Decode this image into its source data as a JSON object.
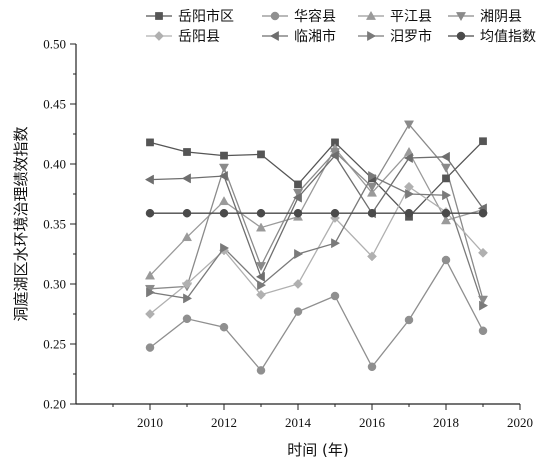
{
  "chart_data": {
    "type": "line",
    "title": "",
    "xlabel": "时间 (年)",
    "ylabel": "洞庭湖区水环境治理绩效指数",
    "xlim": [
      2008,
      2020
    ],
    "ylim": [
      0.2,
      0.5
    ],
    "x_ticks": [
      "2010",
      "2012",
      "2014",
      "2016",
      "2018",
      "2020"
    ],
    "y_ticks": [
      "0.20",
      "0.25",
      "0.30",
      "0.35",
      "0.40",
      "0.45",
      "0.50"
    ],
    "x": [
      2010,
      2011,
      2012,
      2013,
      2014,
      2015,
      2016,
      2017,
      2018,
      2019
    ],
    "grid": false,
    "legend_position": "top",
    "series": [
      {
        "name": "岳阳市区",
        "marker": "square",
        "color": "#555555",
        "values": [
          0.418,
          0.41,
          0.407,
          0.408,
          0.383,
          0.418,
          0.388,
          0.356,
          0.388,
          0.419
        ]
      },
      {
        "name": "华容县",
        "marker": "circle",
        "color": "#8f8f8f",
        "values": [
          0.247,
          0.271,
          0.264,
          0.228,
          0.277,
          0.29,
          0.231,
          0.27,
          0.32,
          0.261
        ]
      },
      {
        "name": "平江县",
        "marker": "triangle-up",
        "color": "#9a9a9a",
        "values": [
          0.307,
          0.339,
          0.369,
          0.347,
          0.356,
          0.413,
          0.376,
          0.41,
          0.353,
          0.362
        ]
      },
      {
        "name": "湘阴县",
        "marker": "triangle-down",
        "color": "#8a8a8a",
        "values": [
          0.296,
          0.298,
          0.397,
          0.315,
          0.376,
          0.41,
          0.381,
          0.433,
          0.397,
          0.287
        ]
      },
      {
        "name": "岳阳县",
        "marker": "diamond",
        "color": "#b0b0b0",
        "values": [
          0.275,
          0.3,
          0.328,
          0.291,
          0.3,
          0.355,
          0.323,
          0.381,
          0.36,
          0.326
        ]
      },
      {
        "name": "临湘市",
        "marker": "triangle-left",
        "color": "#6e6e6e",
        "values": [
          0.387,
          0.388,
          0.39,
          0.306,
          0.372,
          0.407,
          0.359,
          0.405,
          0.406,
          0.363
        ]
      },
      {
        "name": "汨罗市",
        "marker": "triangle-right",
        "color": "#7a7a7a",
        "values": [
          0.293,
          0.288,
          0.33,
          0.299,
          0.325,
          0.334,
          0.39,
          0.375,
          0.374,
          0.282
        ]
      },
      {
        "name": "均值指数",
        "marker": "circle",
        "color": "#4a4a4a",
        "values": [
          0.359,
          0.359,
          0.359,
          0.359,
          0.359,
          0.359,
          0.359,
          0.359,
          0.359,
          0.359
        ]
      }
    ]
  }
}
